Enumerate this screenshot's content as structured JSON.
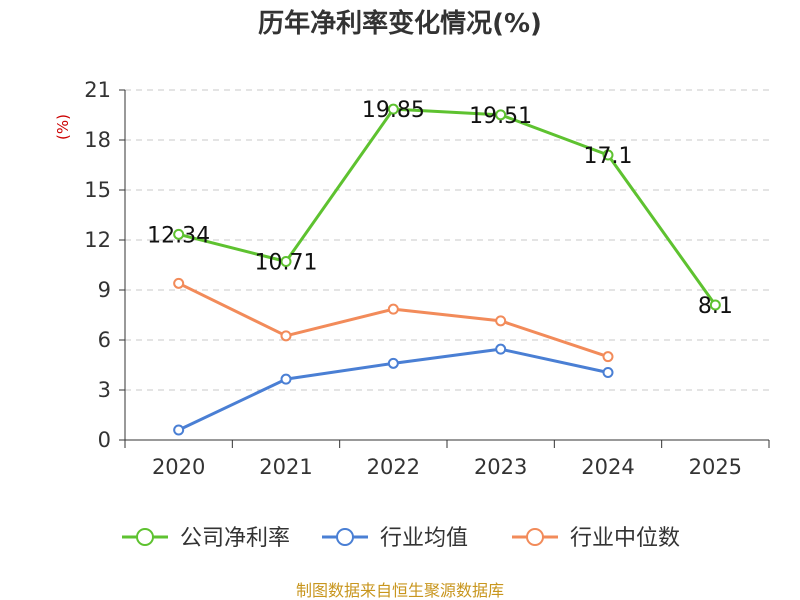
{
  "chart_data": {
    "type": "line",
    "title": "历年净利率变化情况(%)",
    "xlabel": "",
    "ylabel": "(%)",
    "categories": [
      "2020",
      "2021",
      "2022",
      "2023",
      "2024",
      "2025"
    ],
    "ylim": [
      0,
      21
    ],
    "yticks": [
      0,
      3,
      6,
      9,
      12,
      15,
      18,
      21
    ],
    "grid": true,
    "legend_position": "bottom",
    "series": [
      {
        "name": "公司净利率",
        "color": "#5ec230",
        "values": [
          12.34,
          10.71,
          19.85,
          19.51,
          17.1,
          8.1
        ],
        "labels": [
          "12.34",
          "10.71",
          "19.85",
          "19.51",
          "17.1",
          "8.1"
        ]
      },
      {
        "name": "行业均值",
        "color": "#4a7fd4",
        "values": [
          0.6,
          3.65,
          4.6,
          5.45,
          4.05,
          null
        ]
      },
      {
        "name": "行业中位数",
        "color": "#f28b5a",
        "values": [
          9.4,
          6.25,
          7.85,
          7.15,
          5.0,
          null
        ]
      }
    ],
    "source": "制图数据来自恒生聚源数据库"
  }
}
